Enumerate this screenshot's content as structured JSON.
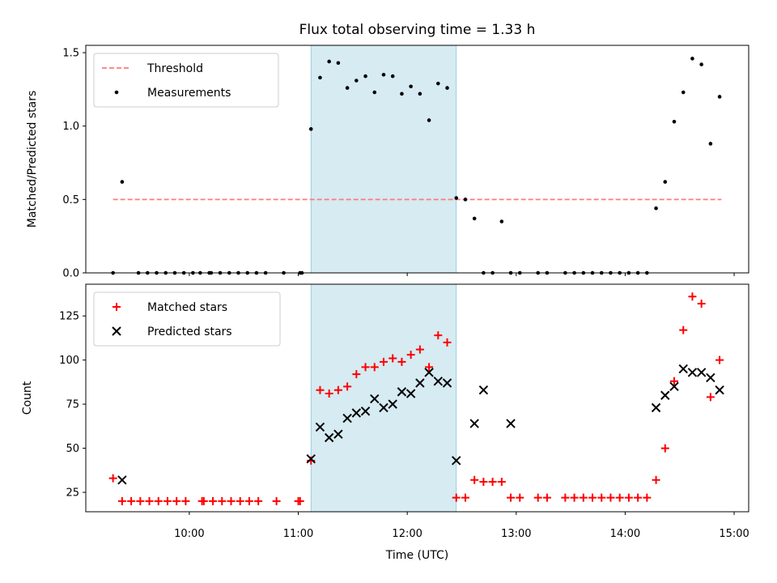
{
  "chart_data": [
    {
      "type": "scatter",
      "title": "Flux total observing time = 1.33 h",
      "xlabel": "",
      "ylabel": "Matched/Predicted stars",
      "ylim": [
        0,
        1.55
      ],
      "yticks": [
        0.0,
        0.5,
        1.0,
        1.5
      ],
      "ytick_labels": [
        "0.0",
        "0.5",
        "1.0",
        "1.5"
      ],
      "legend_position": "top-left",
      "highlight_span": {
        "x_start": "11:07",
        "x_end": "12:27"
      },
      "threshold": {
        "name": "Threshold",
        "value": 0.5,
        "x_start": "09:18",
        "x_end": "14:53",
        "color": "#ff7b7b",
        "style": "dashed"
      },
      "series": [
        {
          "name": "Measurements",
          "color": "#000000",
          "marker": "dot",
          "x": [
            "09:18",
            "09:23",
            "09:32",
            "09:37",
            "09:42",
            "09:47",
            "09:52",
            "09:57",
            "10:02",
            "10:06",
            "10:11",
            "10:12",
            "10:17",
            "10:22",
            "10:27",
            "10:32",
            "10:37",
            "10:42",
            "10:52",
            "11:01",
            "11:02",
            "11:07",
            "11:12",
            "11:17",
            "11:22",
            "11:27",
            "11:32",
            "11:37",
            "11:42",
            "11:47",
            "11:52",
            "11:57",
            "12:02",
            "12:07",
            "12:12",
            "12:17",
            "12:22",
            "12:27",
            "12:32",
            "12:37",
            "12:42",
            "12:47",
            "12:52",
            "12:57",
            "13:02",
            "13:12",
            "13:17",
            "13:27",
            "13:32",
            "13:37",
            "13:42",
            "13:47",
            "13:52",
            "13:57",
            "14:02",
            "14:07",
            "14:12",
            "14:17",
            "14:22",
            "14:27",
            "14:32",
            "14:37",
            "14:42",
            "14:47",
            "14:52"
          ],
          "y": [
            0,
            0.62,
            0,
            0,
            0,
            0,
            0,
            0,
            0,
            0,
            0,
            0,
            0,
            0,
            0,
            0,
            0,
            0,
            0,
            0,
            0,
            0.98,
            1.33,
            1.44,
            1.43,
            1.26,
            1.31,
            1.34,
            1.23,
            1.35,
            1.34,
            1.22,
            1.27,
            1.22,
            1.04,
            1.29,
            1.26,
            0.51,
            0.5,
            0.37,
            0,
            0,
            0.35,
            0,
            0,
            0,
            0,
            0,
            0,
            0,
            0,
            0,
            0,
            0,
            0,
            0,
            0,
            0.44,
            0.62,
            1.03,
            1.23,
            1.46,
            1.42,
            0.88,
            1.2
          ]
        }
      ]
    },
    {
      "type": "scatter",
      "title": "",
      "xlabel": "Time (UTC)",
      "ylabel": "Count",
      "xlim": [
        "09:03",
        "15:08"
      ],
      "ylim": [
        14,
        143
      ],
      "xticks": [
        "10:00",
        "11:00",
        "12:00",
        "13:00",
        "14:00",
        "15:00"
      ],
      "yticks": [
        25,
        50,
        75,
        100,
        125
      ],
      "legend_position": "top-left",
      "highlight_span": {
        "x_start": "11:07",
        "x_end": "12:27"
      },
      "series": [
        {
          "name": "Matched stars",
          "color": "#ff0000",
          "marker": "plus",
          "x": [
            "09:18",
            "09:23",
            "09:28",
            "09:33",
            "09:38",
            "09:43",
            "09:48",
            "09:53",
            "09:58",
            "10:07",
            "10:08",
            "10:13",
            "10:18",
            "10:23",
            "10:28",
            "10:33",
            "10:38",
            "10:48",
            "11:00",
            "11:01",
            "11:07",
            "11:12",
            "11:17",
            "11:22",
            "11:27",
            "11:32",
            "11:37",
            "11:42",
            "11:47",
            "11:52",
            "11:57",
            "12:02",
            "12:07",
            "12:12",
            "12:17",
            "12:22",
            "12:27",
            "12:32",
            "12:37",
            "12:42",
            "12:47",
            "12:52",
            "12:57",
            "13:02",
            "13:12",
            "13:17",
            "13:27",
            "13:32",
            "13:37",
            "13:42",
            "13:47",
            "13:52",
            "13:57",
            "14:02",
            "14:07",
            "14:12",
            "14:17",
            "14:22",
            "14:27",
            "14:32",
            "14:37",
            "14:42",
            "14:47",
            "14:52"
          ],
          "y": [
            33,
            20,
            20,
            20,
            20,
            20,
            20,
            20,
            20,
            20,
            20,
            20,
            20,
            20,
            20,
            20,
            20,
            20,
            20,
            20,
            43,
            83,
            81,
            83,
            85,
            92,
            96,
            96,
            99,
            101,
            99,
            103,
            106,
            96,
            114,
            110,
            22,
            22,
            32,
            31,
            31,
            31,
            22,
            22,
            22,
            22,
            22,
            22,
            22,
            22,
            22,
            22,
            22,
            22,
            22,
            22,
            32,
            50,
            88,
            117,
            136,
            132,
            79,
            100
          ]
        },
        {
          "name": "Predicted stars",
          "color": "#000000",
          "marker": "x",
          "x": [
            "09:23",
            "11:07",
            "11:12",
            "11:17",
            "11:22",
            "11:27",
            "11:32",
            "11:37",
            "11:42",
            "11:47",
            "11:52",
            "11:57",
            "12:02",
            "12:07",
            "12:12",
            "12:17",
            "12:22",
            "12:27",
            "12:37",
            "12:42",
            "12:57",
            "14:17",
            "14:22",
            "14:27",
            "14:32",
            "14:37",
            "14:42",
            "14:47",
            "14:52"
          ],
          "y": [
            32,
            44,
            62,
            56,
            58,
            67,
            70,
            71,
            78,
            73,
            75,
            82,
            81,
            87,
            93,
            88,
            87,
            43,
            64,
            83,
            64,
            73,
            80,
            85,
            95,
            93,
            93,
            90,
            83
          ]
        }
      ]
    }
  ]
}
